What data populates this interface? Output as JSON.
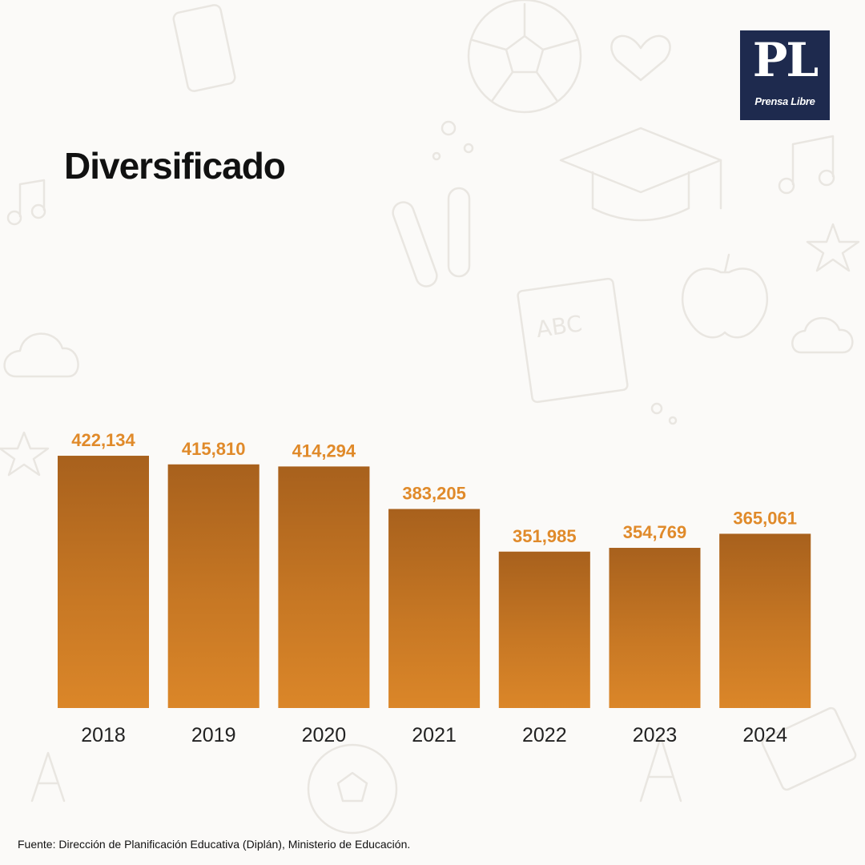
{
  "header": {
    "title": "Diversificado"
  },
  "logo": {
    "mark": "PL",
    "name": "Prensa Libre"
  },
  "footer": {
    "source": "Fuente: Dirección de Planificación Educativa (Diplán), Ministerio de Educación."
  },
  "colors": {
    "bar": "#e08a2a",
    "bar_shadow": "#7a3f12",
    "value_label": "#e08a2a",
    "axis_text": "#222222",
    "logo_bg": "#1e2a4e"
  },
  "chart_data": {
    "type": "bar",
    "title": "Diversificado",
    "categories": [
      "2018",
      "2019",
      "2020",
      "2021",
      "2022",
      "2023",
      "2024"
    ],
    "values": [
      422134,
      415810,
      414294,
      383205,
      351985,
      354769,
      365061
    ],
    "value_labels": [
      "422,134",
      "415,810",
      "414,294",
      "383,205",
      "351,985",
      "354,769",
      "365,061"
    ],
    "xlabel": "",
    "ylabel": "",
    "grid": false,
    "legend": "none"
  }
}
